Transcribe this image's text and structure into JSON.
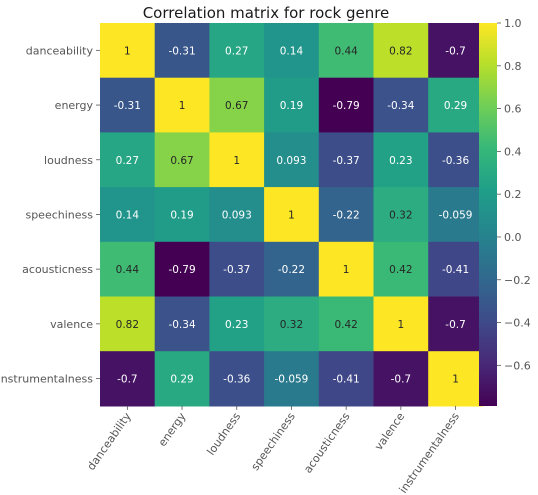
{
  "chart_data": {
    "type": "heatmap",
    "title": "Correlation matrix for rock genre",
    "xlabel": "",
    "ylabel": "",
    "variables": [
      "danceability",
      "energy",
      "loudness",
      "speechiness",
      "acousticness",
      "valence",
      "instrumentalness"
    ],
    "matrix": [
      [
        1,
        -0.31,
        0.27,
        0.14,
        0.44,
        0.82,
        -0.7
      ],
      [
        -0.31,
        1,
        0.67,
        0.19,
        -0.79,
        -0.34,
        0.29
      ],
      [
        0.27,
        0.67,
        1,
        0.093,
        -0.37,
        0.23,
        -0.36
      ],
      [
        0.14,
        0.19,
        0.093,
        1,
        -0.22,
        0.32,
        -0.059
      ],
      [
        0.44,
        -0.79,
        -0.37,
        -0.22,
        1,
        0.42,
        -0.41
      ],
      [
        0.82,
        -0.34,
        0.23,
        0.32,
        0.42,
        1,
        -0.7
      ],
      [
        -0.7,
        0.29,
        -0.36,
        -0.059,
        -0.41,
        -0.7,
        1
      ]
    ],
    "annotations": [
      [
        "1",
        "-0.31",
        "0.27",
        "0.14",
        "0.44",
        "0.82",
        "-0.7"
      ],
      [
        "-0.31",
        "1",
        "0.67",
        "0.19",
        "-0.79",
        "-0.34",
        "0.29"
      ],
      [
        "0.27",
        "0.67",
        "1",
        "0.093",
        "-0.37",
        "0.23",
        "-0.36"
      ],
      [
        "0.14",
        "0.19",
        "0.093",
        "1",
        "-0.22",
        "0.32",
        "-0.059"
      ],
      [
        "0.44",
        "-0.79",
        "-0.37",
        "-0.22",
        "1",
        "0.42",
        "-0.41"
      ],
      [
        "0.82",
        "-0.34",
        "0.23",
        "0.32",
        "0.42",
        "1",
        "-0.7"
      ],
      [
        "-0.7",
        "0.29",
        "-0.36",
        "-0.059",
        "-0.41",
        "-0.7",
        "1"
      ]
    ],
    "colormap": "viridis",
    "vmin": -0.79,
    "vmax": 1,
    "colorbar_ticks": [
      1.0,
      0.8,
      0.6,
      0.4,
      0.2,
      0.0,
      -0.2,
      -0.4,
      -0.6
    ],
    "colorbar_tick_labels": [
      "1.0",
      "0.8",
      "0.6",
      "0.4",
      "0.2",
      "0.0",
      "−0.2",
      "−0.4",
      "−0.6"
    ],
    "x_tick_rotation": "55 degrees",
    "grid": false,
    "colorbar_placement": "right"
  }
}
